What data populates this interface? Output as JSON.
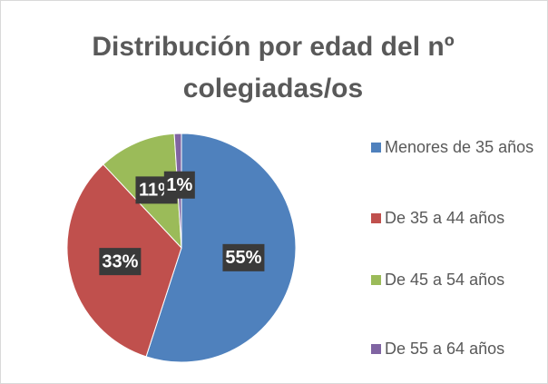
{
  "chart_data": {
    "type": "pie",
    "title": "Distribución por edad del nº colegiadas/os",
    "categories": [
      "Menores de 35 años",
      "De 35 a 44 años",
      "De 45 a 54 años",
      "De 55 a 64 años"
    ],
    "values": [
      55,
      33,
      11,
      1
    ],
    "value_labels": [
      "55%",
      "33%",
      "11%",
      "1%"
    ],
    "colors": [
      "#4f81bd",
      "#c0504d",
      "#9bbb59",
      "#8064a2"
    ],
    "legend": "right"
  }
}
